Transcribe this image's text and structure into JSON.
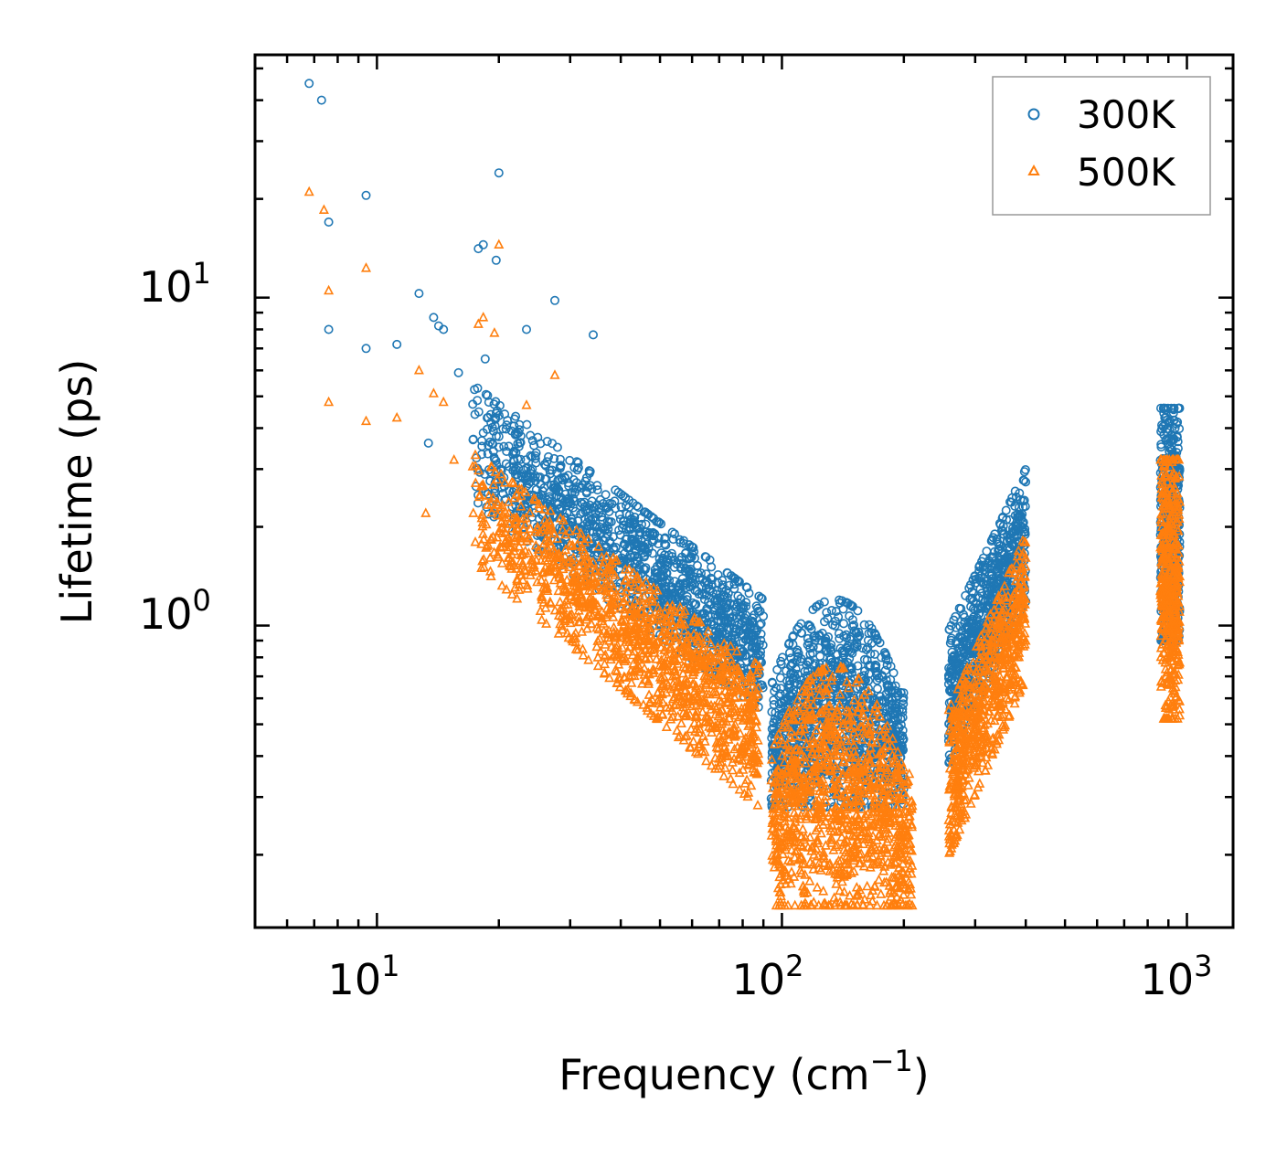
{
  "chart_data": {
    "type": "scatter",
    "title": "",
    "xlabel": "Frequency (cm",
    "xlabel_sup": "−1",
    "xlabel_end": ")",
    "ylabel": "Lifetime (ps)",
    "xscale": "log",
    "yscale": "log",
    "xlim": [
      5.0,
      1300
    ],
    "ylim": [
      0.12,
      55
    ],
    "x_ticks": [
      {
        "base": "10",
        "exp": "1",
        "value": 10
      },
      {
        "base": "10",
        "exp": "2",
        "value": 100
      },
      {
        "base": "10",
        "exp": "3",
        "value": 1000
      }
    ],
    "y_ticks": [
      {
        "base": "10",
        "exp": "0",
        "value": 1
      },
      {
        "base": "10",
        "exp": "1",
        "value": 10
      }
    ],
    "legend_position": "top-right",
    "series": [
      {
        "name": "300K",
        "color": "#1f77b4",
        "marker": "circle",
        "notable_points": [
          [
            6.8,
            45
          ],
          [
            7.3,
            40
          ],
          [
            7.6,
            17
          ],
          [
            7.6,
            8
          ],
          [
            9.4,
            20.5
          ],
          [
            9.4,
            7
          ],
          [
            11.2,
            7.2
          ],
          [
            12.7,
            10.3
          ],
          [
            13.4,
            3.6
          ],
          [
            13.8,
            8.7
          ],
          [
            14.2,
            8.2
          ],
          [
            14.6,
            8.0
          ],
          [
            15.9,
            5.9
          ],
          [
            17.3,
            3.7
          ],
          [
            17.8,
            14.1
          ],
          [
            18.3,
            14.5
          ],
          [
            18.5,
            6.5
          ],
          [
            19.7,
            13
          ],
          [
            20.0,
            24
          ],
          [
            23.4,
            8
          ],
          [
            27.5,
            9.8
          ],
          [
            34.2,
            7.7
          ],
          [
            40.1,
            2.3
          ]
        ],
        "clusters": [
          {
            "x_range": [
              17,
              90
            ],
            "y_at_start": [
              2.4,
              5.5
            ],
            "y_at_end": [
              0.55,
              1.2
            ]
          },
          {
            "x_range": [
              94,
              200
            ],
            "y_low": 0.28,
            "y_high": 1.2,
            "peak_x": 135
          },
          {
            "x_range": [
              258,
              400
            ],
            "y_low": 0.38,
            "y_high": 3.0,
            "rising": true
          },
          {
            "x_range": [
              860,
              960
            ],
            "y_low": 0.9,
            "y_high": 4.6
          }
        ]
      },
      {
        "name": "500K",
        "color": "#ff7f0e",
        "marker": "triangle",
        "notable_points": [
          [
            6.8,
            21
          ],
          [
            7.4,
            18.5
          ],
          [
            7.6,
            10.5
          ],
          [
            7.6,
            4.8
          ],
          [
            9.4,
            12.3
          ],
          [
            9.4,
            4.2
          ],
          [
            11.2,
            4.3
          ],
          [
            12.7,
            6.0
          ],
          [
            13.2,
            2.2
          ],
          [
            13.8,
            5.1
          ],
          [
            14.6,
            4.8
          ],
          [
            15.5,
            3.2
          ],
          [
            17.3,
            2.2
          ],
          [
            17.8,
            8.3
          ],
          [
            18.3,
            8.7
          ],
          [
            19.5,
            7.8
          ],
          [
            20.0,
            14.5
          ],
          [
            23.4,
            4.7
          ],
          [
            27.5,
            5.8
          ]
        ],
        "clusters": [
          {
            "x_range": [
              17,
              88
            ],
            "y_at_start": [
              1.6,
              3.4
            ],
            "y_at_end": [
              0.28,
              0.75
            ]
          },
          {
            "x_range": [
              94,
              210
            ],
            "y_low": 0.14,
            "y_high": 0.75,
            "peak_x": 135
          },
          {
            "x_range": [
              258,
              400
            ],
            "y_low": 0.2,
            "y_high": 1.9,
            "rising": true
          },
          {
            "x_range": [
              860,
              960
            ],
            "y_low": 0.52,
            "y_high": 3.2
          }
        ]
      }
    ]
  }
}
